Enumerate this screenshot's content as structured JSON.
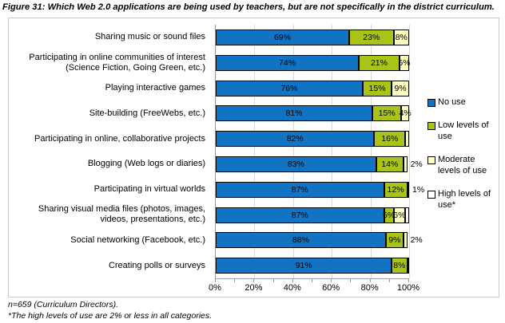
{
  "title": "Figure 31: Which Web 2.0 applications are being used by teachers, but are not specifically in the district curriculum.",
  "footnotes": [
    "n=659 (Curriculum Directors).",
    "*The high levels of use are 2% or less in all categories."
  ],
  "chart_data": {
    "type": "bar",
    "orientation": "horizontal",
    "stacked": true,
    "title": "Figure 31: Which Web 2.0 applications are being used by teachers, but are not specifically in the district curriculum.",
    "xlim": [
      0,
      100
    ],
    "x_ticks": [
      "0%",
      "20%",
      "40%",
      "60%",
      "80%",
      "100%"
    ],
    "gridline_interval": 20,
    "minor_tick_interval": 10,
    "legend_position": "right",
    "legend": [
      {
        "key": "no_use",
        "label": "No use",
        "color": "#1273c2"
      },
      {
        "key": "low",
        "label": "Low levels of use",
        "color": "#a8c418"
      },
      {
        "key": "moderate",
        "label": "Moderate levels of use",
        "color": "#ffffc2"
      },
      {
        "key": "high",
        "label": "High levels of use*",
        "color": "#ffffff"
      }
    ],
    "categories": [
      "Sharing music or sound files",
      "Participating in online communities of interest (Science Fiction, Going Green, etc.)",
      "Playing interactive games",
      "Site-building (FreeWebs, etc.)",
      "Participating in online, collaborative projects",
      "Blogging (Web logs or diaries)",
      "Participating in virtual worlds",
      "Sharing visual media files (photos, images, videos, presentations, etc.)",
      "Social networking (Facebook, etc.)",
      "Creating polls or surveys"
    ],
    "series": [
      {
        "name": "No use",
        "key": "no_use",
        "values": [
          69,
          74,
          76,
          81,
          82,
          83,
          87,
          87,
          88,
          91
        ],
        "labels": [
          "69%",
          "74%",
          "76%",
          "81%",
          "82%",
          "83%",
          "87%",
          "87%",
          "88%",
          "91%"
        ],
        "label_pos": [
          "inside",
          "inside",
          "inside",
          "inside",
          "inside",
          "inside",
          "inside",
          "inside",
          "inside",
          "inside"
        ]
      },
      {
        "name": "Low levels of use",
        "key": "low",
        "values": [
          23,
          21,
          15,
          15,
          16,
          14,
          12,
          5,
          9,
          8
        ],
        "labels": [
          "23%",
          "21%",
          "15%",
          "15%",
          "16%",
          "14%",
          "12%",
          "5%",
          "9%",
          "8%"
        ],
        "label_pos": [
          "inside",
          "inside",
          "inside",
          "inside",
          "inside",
          "inside",
          "inside",
          "inside",
          "inside",
          "inside"
        ]
      },
      {
        "name": "Moderate levels of use",
        "key": "moderate",
        "values": [
          8,
          5,
          9,
          4,
          2,
          2,
          1,
          6,
          2,
          1
        ],
        "labels": [
          "8%",
          "5%",
          "9%",
          "4%",
          "",
          "2%",
          "1%",
          "6%",
          "2%",
          ""
        ],
        "label_pos": [
          "inside",
          "inside",
          "inside",
          "inside",
          "none",
          "outside",
          "outside",
          "inside",
          "outside",
          "none"
        ]
      },
      {
        "name": "High levels of use*",
        "key": "high",
        "values": [
          0,
          0,
          0,
          0,
          0,
          0,
          0,
          2,
          0,
          0
        ],
        "labels": [
          "",
          "",
          "",
          "",
          "",
          "",
          "",
          "",
          "",
          ""
        ],
        "label_pos": [
          "none",
          "none",
          "none",
          "none",
          "none",
          "none",
          "none",
          "none",
          "none",
          "none"
        ]
      }
    ]
  }
}
